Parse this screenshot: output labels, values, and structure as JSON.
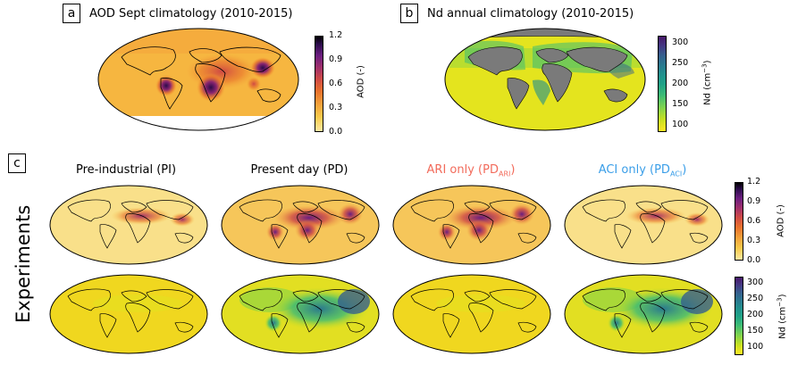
{
  "panels": {
    "a": {
      "letter": "a",
      "title": "AOD Sept climatology (2010-2015)"
    },
    "b": {
      "letter": "b",
      "title": "Nd annual climatology (2010-2015)"
    },
    "c": {
      "letter": "c"
    }
  },
  "experiments": {
    "row_label": "Experiments",
    "titles": {
      "pi": "Pre-industrial (PI)",
      "pd": "Present day (PD)",
      "ari_prefix": "ARI only (PD",
      "ari_sub": "ARI",
      "ari_suffix": ")",
      "aci_prefix": "ACI only (PD",
      "aci_sub": "ACI",
      "aci_suffix": ")"
    },
    "title_colors": {
      "ari": "#f26b5b",
      "aci": "#3a9ee8"
    }
  },
  "colorbars": {
    "aod_top": {
      "label": "AOD (-)",
      "ticks": [
        "1.2",
        "0.9",
        "0.6",
        "0.3",
        "0.0"
      ]
    },
    "nd_top": {
      "label_main": "Nd (cm",
      "label_sup": "−3",
      "label_end": ")",
      "ticks": [
        "300",
        "250",
        "200",
        "150",
        "100"
      ]
    },
    "aod_exp": {
      "label": "AOD (-)",
      "ticks": [
        "1.2",
        "0.9",
        "0.6",
        "0.3",
        "0.0"
      ]
    },
    "nd_exp": {
      "label_main": "Nd (cm",
      "label_sup": "−3",
      "label_end": ")",
      "ticks": [
        "300",
        "250",
        "200",
        "150",
        "100"
      ]
    }
  },
  "colors": {
    "aod_low": "#fde8a0",
    "aod_mid": "#e8722c",
    "aod_high": "#2b0b4a",
    "nd_low": "#fde725",
    "nd_mid": "#21908d",
    "nd_high": "#48186a",
    "land_mask": "#7a7a7a"
  }
}
